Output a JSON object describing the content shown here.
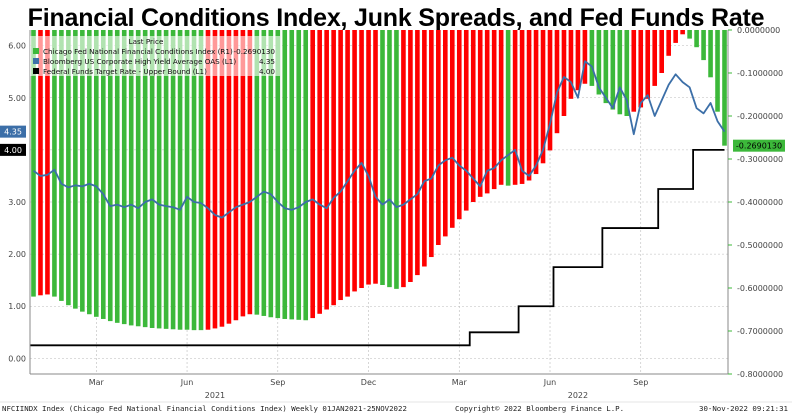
{
  "chart_data": {
    "type": "bar",
    "title": "Financial Conditions Index, Junk Spreads, and Fed Funds Rate",
    "legend": {
      "header": "Last Price",
      "placement": "top-left",
      "entries": [
        {
          "label": "Chicago Fed National Financial Conditions Index  (R1)",
          "value": "-0.2690130",
          "color": "#3cb83a"
        },
        {
          "label": "Bloomberg US Corporate High Yield Average OAS  (L1)",
          "value": "4.35",
          "color": "#3c6fa8"
        },
        {
          "label": "Federal Funds Target Rate - Upper Bound  (L1)",
          "value": "4.00",
          "color": "#000000"
        }
      ]
    },
    "left_axis": {
      "ylim": [
        -0.3,
        6.3
      ],
      "ticks": [
        "0.00",
        "1.00",
        "2.00",
        "3.00",
        "4.00",
        "5.00",
        "6.00"
      ],
      "tick_values": [
        0,
        1,
        2,
        3,
        4,
        5,
        6
      ]
    },
    "right_axis": {
      "ylim": [
        -0.8,
        0.0
      ],
      "ticks": [
        "0.0000000",
        "-0.1000000",
        "-0.2000000",
        "-0.3000000",
        "-0.4000000",
        "-0.5000000",
        "-0.6000000",
        "-0.7000000",
        "-0.8000000"
      ],
      "tick_values": [
        0,
        -0.1,
        -0.2,
        -0.3,
        -0.4,
        -0.5,
        -0.6,
        -0.7,
        -0.8
      ]
    },
    "x_months": [
      {
        "label": "Mar",
        "week": 9
      },
      {
        "label": "Jun",
        "week": 22
      },
      {
        "label": "Sep",
        "week": 35
      },
      {
        "label": "Dec",
        "week": 48
      },
      {
        "label": "Mar",
        "week": 61
      },
      {
        "label": "Jun",
        "week": 74
      },
      {
        "label": "Sep",
        "week": 87
      }
    ],
    "x_years": [
      {
        "label": "2021",
        "week": 26
      },
      {
        "label": "2022",
        "week": 78
      }
    ],
    "n_weeks": 100,
    "nfci_series": {
      "name": "Chicago Fed National Financial Conditions Index",
      "axis": "right",
      "color_rising": "#ff0000",
      "color_falling": "#3cb83a",
      "values": [
        -0.62,
        -0.617,
        -0.615,
        -0.62,
        -0.63,
        -0.64,
        -0.648,
        -0.655,
        -0.661,
        -0.667,
        -0.672,
        -0.677,
        -0.681,
        -0.684,
        -0.687,
        -0.689,
        -0.691,
        -0.693,
        -0.694,
        -0.695,
        -0.696,
        -0.697,
        -0.697,
        -0.698,
        -0.698,
        -0.697,
        -0.694,
        -0.69,
        -0.683,
        -0.675,
        -0.666,
        -0.661,
        -0.662,
        -0.665,
        -0.668,
        -0.67,
        -0.672,
        -0.673,
        -0.674,
        -0.675,
        -0.67,
        -0.66,
        -0.65,
        -0.64,
        -0.628,
        -0.62,
        -0.608,
        -0.6,
        -0.592,
        -0.59,
        -0.593,
        -0.598,
        -0.602,
        -0.598,
        -0.586,
        -0.57,
        -0.55,
        -0.528,
        -0.5,
        -0.48,
        -0.46,
        -0.44,
        -0.42,
        -0.4,
        -0.388,
        -0.38,
        -0.37,
        -0.36,
        -0.362,
        -0.36,
        -0.358,
        -0.35,
        -0.335,
        -0.31,
        -0.28,
        -0.24,
        -0.2,
        -0.16,
        -0.14,
        -0.125,
        -0.13,
        -0.15,
        -0.17,
        -0.185,
        -0.196,
        -0.2,
        -0.19,
        -0.18,
        -0.16,
        -0.13,
        -0.1,
        -0.06,
        -0.03,
        -0.01,
        -0.02,
        -0.04,
        -0.07,
        -0.11,
        -0.19,
        -0.269
      ]
    },
    "hy_oas_series": {
      "name": "Bloomberg US Corporate High Yield Average OAS",
      "axis": "left",
      "color": "#3c6fa8",
      "values": [
        3.6,
        3.5,
        3.52,
        3.62,
        3.35,
        3.28,
        3.32,
        3.3,
        3.35,
        3.3,
        3.15,
        2.92,
        2.95,
        2.9,
        2.95,
        2.88,
        3.0,
        3.05,
        2.95,
        2.92,
        2.9,
        2.85,
        3.1,
        3.0,
        2.98,
        2.88,
        2.75,
        2.7,
        2.8,
        2.9,
        2.95,
        3.0,
        3.1,
        3.2,
        3.15,
        3.0,
        2.88,
        2.85,
        2.9,
        3.0,
        3.05,
        2.95,
        2.88,
        3.08,
        3.2,
        3.4,
        3.6,
        3.75,
        3.5,
        3.1,
        2.95,
        3.05,
        2.9,
        2.95,
        3.05,
        3.15,
        3.4,
        3.45,
        3.7,
        3.8,
        3.85,
        3.7,
        3.6,
        3.45,
        3.3,
        3.6,
        3.65,
        3.8,
        3.9,
        4.0,
        3.6,
        3.5,
        3.7,
        4.0,
        4.5,
        5.1,
        5.4,
        5.3,
        5.0,
        5.7,
        5.6,
        5.2,
        5.0,
        4.8,
        5.2,
        4.95,
        4.3,
        4.9,
        5.05,
        4.65,
        4.95,
        5.25,
        5.45,
        5.3,
        5.2,
        4.8,
        4.7,
        4.9,
        4.55,
        4.35
      ]
    },
    "fed_funds_series": {
      "name": "Federal Funds Target Rate - Upper Bound",
      "axis": "left",
      "color": "#000000",
      "steps": [
        {
          "from_week": 0,
          "value": 0.25
        },
        {
          "from_week": 63,
          "value": 0.5
        },
        {
          "from_week": 70,
          "value": 1.0
        },
        {
          "from_week": 75,
          "value": 1.75
        },
        {
          "from_week": 82,
          "value": 2.5
        },
        {
          "from_week": 90,
          "value": 3.25
        },
        {
          "from_week": 95,
          "value": 4.0
        }
      ]
    },
    "last_price_badges": [
      {
        "text": "4.35",
        "axis": "left",
        "value": 4.35,
        "bg": "#3c6fa8",
        "fg": "#ffffff"
      },
      {
        "text": "4.00",
        "axis": "left",
        "value": 4.0,
        "bg": "#000000",
        "fg": "#ffffff"
      },
      {
        "text": "-0.2690130",
        "axis": "right",
        "value": -0.269013,
        "bg": "#3cb83a",
        "fg": "#000000"
      }
    ]
  },
  "footer": {
    "left": "NFCIINDX Index (Chicago Fed National Financial Conditions Index)  Weekly 01JAN2021-25NOV2022",
    "center": "Copyright© 2022 Bloomberg Finance L.P.",
    "right": "30-Nov-2022 09:21:31"
  },
  "colors": {
    "gridline": "#bbbbbb",
    "axis_frame": "#888888"
  }
}
